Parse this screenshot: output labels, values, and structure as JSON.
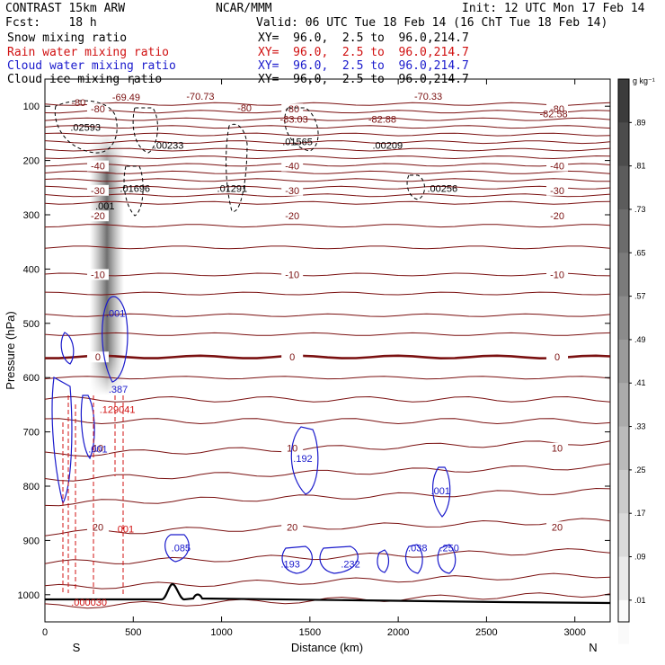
{
  "header": {
    "title": "CONTRAST 15km ARW",
    "center": "NCAR/MMM",
    "init": "Init: 12 UTC Mon 17 Feb 14",
    "fcst": "Fcst:    18 h",
    "valid": "Valid: 06 UTC Tue 18 Feb 14 (16 ChT Tue 18 Feb 14)"
  },
  "fields": [
    {
      "name": "Snow mixing ratio",
      "xy": "XY=  96.0,  2.5 to  96.0,214.7",
      "color": "#000000"
    },
    {
      "name": "Rain water mixing ratio",
      "xy": "XY=  96.0,  2.5 to  96.0,214.7",
      "color": "#d01010"
    },
    {
      "name": "Cloud water mixing ratio",
      "xy": "XY=  96.0,  2.5 to  96.0,214.7",
      "color": "#1a1acc"
    },
    {
      "name": "Cloud ice mixing ratio",
      "xy": "XY=  96.0,  2.5 to  96.0,214.7",
      "color": "#000000"
    }
  ],
  "colorbar": {
    "unit": "g kg⁻¹",
    "labels": [
      ".89",
      ".81",
      ".73",
      ".65",
      ".57",
      ".49",
      ".41",
      ".33",
      ".25",
      ".17",
      ".09",
      ".01"
    ]
  },
  "chart_data": {
    "type": "contour",
    "xlabel": "Distance (km)",
    "ylabel": "Pressure (hPa)",
    "xlim": [
      0,
      3200
    ],
    "ylim": [
      1050,
      50
    ],
    "xticks": [
      0,
      500,
      1000,
      1500,
      2000,
      2500,
      3000
    ],
    "yticks": [
      100,
      200,
      300,
      400,
      500,
      600,
      700,
      800,
      900,
      1000
    ],
    "left_end_label": "S",
    "right_end_label": "N",
    "temperature_contours": [
      {
        "label": "-80",
        "pressure": 105
      },
      {
        "label": "-40",
        "pressure": 210
      },
      {
        "label": "-30",
        "pressure": 255
      },
      {
        "label": "-20",
        "pressure": 302
      },
      {
        "label": "-10",
        "pressure": 410
      },
      {
        "label": "0",
        "pressure": 562
      },
      {
        "label": "10",
        "pressure": 730
      },
      {
        "label": "20",
        "pressure": 875
      }
    ],
    "extrema_labels": [
      {
        "text": "-80",
        "x": 190,
        "p": 100,
        "color": "#7a1010"
      },
      {
        "text": "-69.49",
        "x": 460,
        "p": 90,
        "color": "#7a1010"
      },
      {
        "text": "-70.73",
        "x": 880,
        "p": 88,
        "color": "#7a1010"
      },
      {
        "text": "-80",
        "x": 1130,
        "p": 110,
        "color": "#7a1010"
      },
      {
        "text": "-83.03",
        "x": 1410,
        "p": 130,
        "color": "#7a1010"
      },
      {
        "text": "-82.88",
        "x": 1910,
        "p": 130,
        "color": "#7a1010"
      },
      {
        "text": "-70.33",
        "x": 2170,
        "p": 88,
        "color": "#7a1010"
      },
      {
        "text": "-82.58",
        "x": 2880,
        "p": 120,
        "color": "#7a1010"
      },
      {
        "text": ".02593",
        "x": 230,
        "p": 145,
        "color": "#000000"
      },
      {
        "text": ".00233",
        "x": 700,
        "p": 178,
        "color": "#000000"
      },
      {
        "text": ".01565",
        "x": 1430,
        "p": 172,
        "color": "#000000"
      },
      {
        "text": ".00209",
        "x": 1940,
        "p": 178,
        "color": "#000000"
      },
      {
        "text": ".01696",
        "x": 510,
        "p": 258,
        "color": "#000000"
      },
      {
        "text": ".01291",
        "x": 1060,
        "p": 258,
        "color": "#000000"
      },
      {
        "text": ".00256",
        "x": 2250,
        "p": 258,
        "color": "#000000"
      },
      {
        "text": ".001",
        "x": 340,
        "p": 290,
        "color": "#000000"
      },
      {
        "text": ".001",
        "x": 400,
        "p": 488,
        "color": "#1a1acc"
      },
      {
        "text": ".387",
        "x": 415,
        "p": 628,
        "color": "#1a1acc"
      },
      {
        "text": ".129041",
        "x": 410,
        "p": 665,
        "color": "#d01010"
      },
      {
        "text": ".001",
        "x": 300,
        "p": 738,
        "color": "#1a1acc"
      },
      {
        "text": ".192",
        "x": 1460,
        "p": 755,
        "color": "#1a1acc"
      },
      {
        "text": ".001",
        "x": 2240,
        "p": 815,
        "color": "#1a1acc"
      },
      {
        "text": ".001",
        "x": 450,
        "p": 885,
        "color": "#d01010"
      },
      {
        "text": ".085",
        "x": 770,
        "p": 920,
        "color": "#1a1acc"
      },
      {
        "text": ".193",
        "x": 1390,
        "p": 950,
        "color": "#1a1acc"
      },
      {
        "text": ".232",
        "x": 1730,
        "p": 950,
        "color": "#1a1acc"
      },
      {
        "text": ".038",
        "x": 2110,
        "p": 920,
        "color": "#1a1acc"
      },
      {
        "text": ".250",
        "x": 2290,
        "p": 920,
        "color": "#1a1acc"
      },
      {
        "text": ".000030",
        "x": 250,
        "p": 1020,
        "color": "#d01010"
      }
    ]
  }
}
